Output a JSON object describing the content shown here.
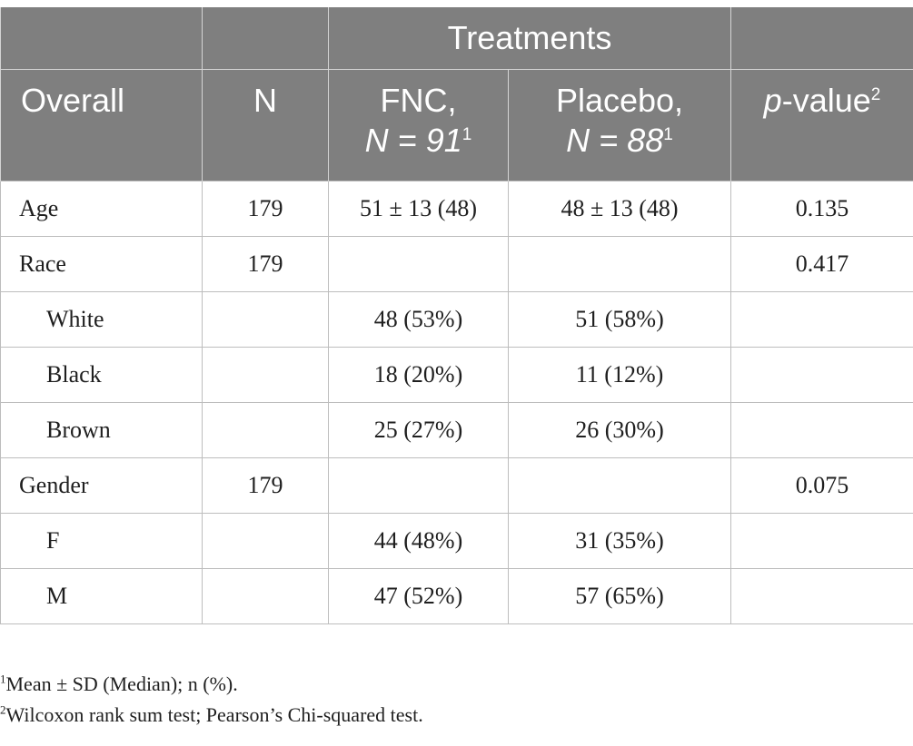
{
  "header": {
    "group_label": "Treatments",
    "col_overall": "Overall",
    "col_n": "N",
    "col_fnc_name": "FNC,",
    "col_fnc_n": "N = 91",
    "col_fnc_sup": "1",
    "col_placebo_name": "Placebo,",
    "col_placebo_n": "N = 88",
    "col_placebo_sup": "1",
    "col_p_italic": "p",
    "col_p_rest": "-value",
    "col_p_sup": "2"
  },
  "rows": [
    {
      "label": "Age",
      "n": "179",
      "fnc": "51 ± 13 (48)",
      "placebo": "48 ± 13 (48)",
      "p": "0.135"
    },
    {
      "label": "Race",
      "n": "179",
      "fnc": "",
      "placebo": "",
      "p": "0.417"
    },
    {
      "label": "White",
      "n": "",
      "fnc": "48 (53%)",
      "placebo": "51 (58%)",
      "p": ""
    },
    {
      "label": "Black",
      "n": "",
      "fnc": "18 (20%)",
      "placebo": "11 (12%)",
      "p": ""
    },
    {
      "label": "Brown",
      "n": "",
      "fnc": "25 (27%)",
      "placebo": "26 (30%)",
      "p": ""
    },
    {
      "label": "Gender",
      "n": "179",
      "fnc": "",
      "placebo": "",
      "p": "0.075"
    },
    {
      "label": "F",
      "n": "",
      "fnc": "44 (48%)",
      "placebo": "31 (35%)",
      "p": ""
    },
    {
      "label": "M",
      "n": "",
      "fnc": "47 (52%)",
      "placebo": "57 (65%)",
      "p": ""
    }
  ],
  "footnotes": [
    {
      "marker": "1",
      "text": "Mean ± SD (Median); n (%)."
    },
    {
      "marker": "2",
      "text": "Wilcoxon rank sum test; Pearson’s Chi-squared test."
    }
  ]
}
